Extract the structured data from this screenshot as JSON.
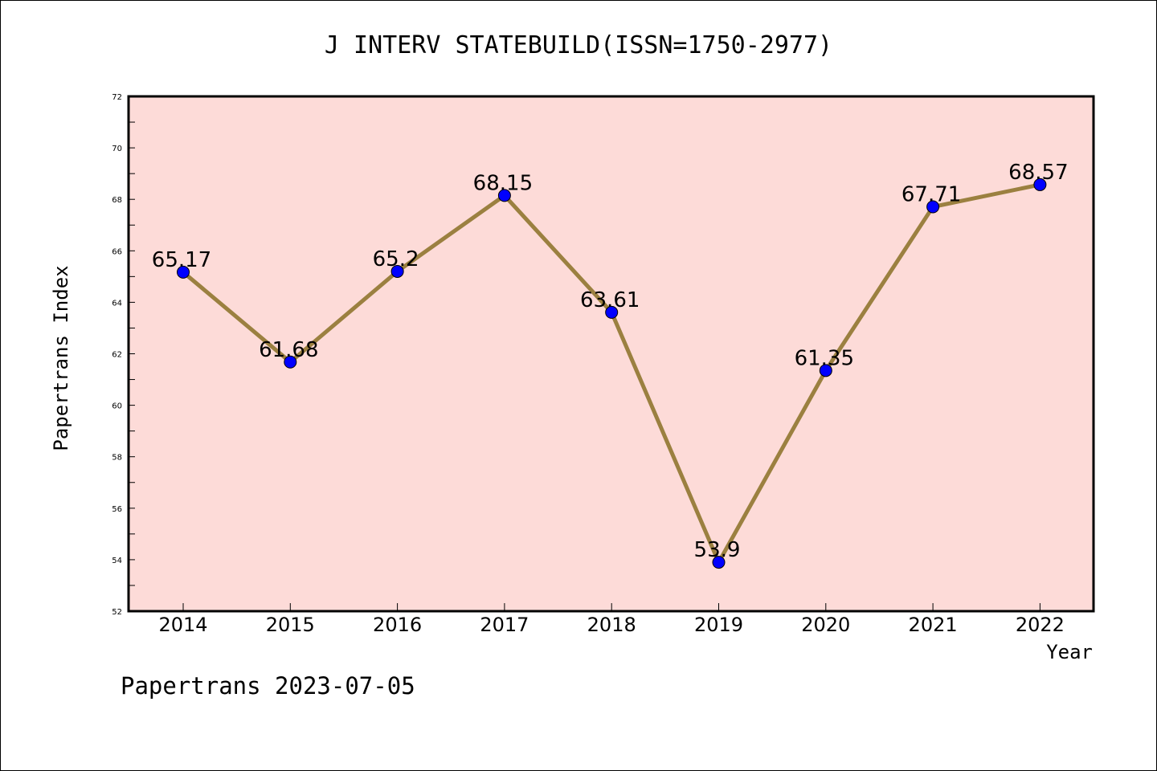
{
  "chart_data": {
    "type": "line",
    "title": "J INTERV STATEBUILD(ISSN=1750-2977)",
    "xlabel": "Year",
    "ylabel": "Papertrans Index",
    "categories": [
      "2014",
      "2015",
      "2016",
      "2017",
      "2018",
      "2019",
      "2020",
      "2021",
      "2022"
    ],
    "values": [
      65.17,
      61.68,
      65.2,
      68.15,
      63.61,
      53.9,
      61.35,
      67.71,
      68.57
    ],
    "value_labels": [
      "65.17",
      "61.68",
      "65.2",
      "68.15",
      "63.61",
      "53.9",
      "61.35",
      "67.71",
      "68.57"
    ],
    "ylim": [
      52,
      72
    ],
    "yticks": [
      "52",
      "54",
      "56",
      "58",
      "60",
      "62",
      "64",
      "66",
      "68",
      "70",
      "72"
    ],
    "grid": false,
    "colors": {
      "plot_background": "#fddbd8",
      "line": "#9b8040",
      "marker": "#0000ff"
    }
  },
  "footer": "Papertrans 2023-07-05"
}
